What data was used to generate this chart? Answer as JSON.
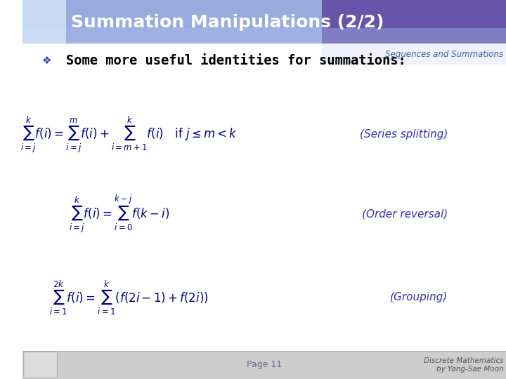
{
  "title": "Summation Manipulations (2/2)",
  "subtitle": "Sequences and Summations",
  "bullet_text": "Some more useful identities for summations:",
  "formula1": "$\\sum_{i=j}^{k} f(i) = \\sum_{i=j}^{m} f(i) + \\sum_{i=m+1}^{k} f(i) \\quad \\mathrm{if}\\ j \\leq m < k$",
  "label1": "(Series splitting)",
  "formula2": "$\\sum_{i=j}^{k} f(i) = \\sum_{i=0}^{k-j} f(k-i)$",
  "label2": "(Order reversal)",
  "formula3": "$\\sum_{i=1}^{2k} f(i) = \\sum_{i=1}^{k} \\left( f(2i-1) + f(2i) \\right)$",
  "label3": "(Grouping)",
  "page_text": "Page 11",
  "footer_text": "Discrete Mathematics\nby Yang-Sae Moon",
  "bg_color": "#ffffff",
  "header_bg": "#8899cc",
  "header_text_color": "#ffffff",
  "subtitle_color": "#336699",
  "formula_color": "#000080",
  "label_color": "#3333aa",
  "bullet_color": "#000000",
  "footer_color": "#555555",
  "page_color": "#666699",
  "footer_bar_color": "#bbbbbb"
}
